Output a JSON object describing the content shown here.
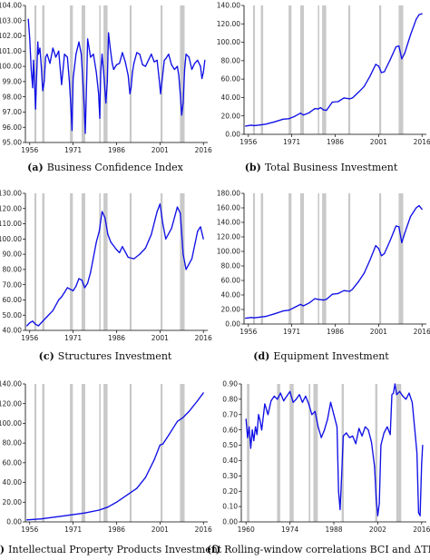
{
  "colors": {
    "series": "#1010e6",
    "recession_shade": "#c9c9c9",
    "axis": "#000000"
  },
  "chart_data": [
    {
      "type": "line",
      "panel": "a",
      "caption_letter": "(a)",
      "caption_text": "Business Confidence Index",
      "xlim": [
        1954.5,
        2017.5
      ],
      "ylim": [
        95.0,
        104.0
      ],
      "x_ticks": [
        "1956",
        "1971",
        "1986",
        "2001",
        "2016"
      ],
      "y_ticks": [
        "95.00",
        "96.00",
        "97.00",
        "98.00",
        "99.00",
        "100.00",
        "101.00",
        "102.00",
        "103.00",
        "104.00"
      ],
      "y_tick_values": [
        95,
        96,
        97,
        98,
        99,
        100,
        101,
        102,
        103,
        104
      ],
      "x_tick_values": [
        1956,
        1971,
        1986,
        2001,
        2016
      ],
      "recession_bands": [
        [
          1957.6,
          1958.3
        ],
        [
          1960.3,
          1961.1
        ],
        [
          1969.9,
          1970.9
        ],
        [
          1973.9,
          1975.2
        ],
        [
          1980.0,
          1980.5
        ],
        [
          1981.5,
          1982.9
        ],
        [
          1990.5,
          1991.2
        ],
        [
          2001.2,
          2001.9
        ],
        [
          2007.9,
          2009.5
        ]
      ],
      "series": [
        {
          "x": [
            1955.5,
            1956,
            1956.5,
            1957,
            1957.3,
            1957.7,
            1958,
            1958.4,
            1958.8,
            1959,
            1959.5,
            1960,
            1960.5,
            1961,
            1961.5,
            1962,
            1963,
            1964,
            1965,
            1966,
            1967,
            1968,
            1969,
            1969.7,
            1970.2,
            1970.6,
            1971,
            1972,
            1973,
            1973.8,
            1974.3,
            1974.8,
            1975.2,
            1975.7,
            1976,
            1977,
            1978,
            1979,
            1979.8,
            1980.2,
            1980.5,
            1981,
            1981.7,
            1982.3,
            1982.8,
            1983.2,
            1983.8,
            1984.5,
            1985,
            1986,
            1987,
            1988,
            1989,
            1990,
            1990.6,
            1991,
            1991.5,
            1992,
            1993,
            1994,
            1995,
            1996,
            1997,
            1998,
            1999,
            2000,
            2000.7,
            2001.2,
            2001.8,
            2002.5,
            2003,
            2004,
            2005,
            2006,
            2007,
            2007.5,
            2008,
            2008.5,
            2009,
            2009.5,
            2010,
            2011,
            2012,
            2013,
            2014,
            2015,
            2015.5,
            2016,
            2016.5
          ],
          "values": [
            103.1,
            101.8,
            99.8,
            98.6,
            100.4,
            98.8,
            97.2,
            99.4,
            101.6,
            100.8,
            101.2,
            100.0,
            98.4,
            99.0,
            100.6,
            100.8,
            100.2,
            101.2,
            100.6,
            101.0,
            98.8,
            100.8,
            100.6,
            99.0,
            97.4,
            95.8,
            99.2,
            100.8,
            101.6,
            100.8,
            99.2,
            97.4,
            95.6,
            99.2,
            101.8,
            100.6,
            100.8,
            99.6,
            98.2,
            96.6,
            99.6,
            100.8,
            99.2,
            97.6,
            99.0,
            102.2,
            101.2,
            100.2,
            99.8,
            100.1,
            100.2,
            100.9,
            100.3,
            99.4,
            98.2,
            98.6,
            99.6,
            100.2,
            100.9,
            100.8,
            100.1,
            100.0,
            100.4,
            100.8,
            100.3,
            100.4,
            99.2,
            98.2,
            99.2,
            100.4,
            100.5,
            100.8,
            100.1,
            99.8,
            100.0,
            99.4,
            98.2,
            96.8,
            97.6,
            99.8,
            100.8,
            100.6,
            99.8,
            100.2,
            100.4,
            100.0,
            99.2,
            99.6,
            100.4
          ]
        }
      ]
    },
    {
      "type": "line",
      "panel": "b",
      "caption_letter": "(b)",
      "caption_text": "Total Business Investment",
      "xlim": [
        1954.5,
        2017.5
      ],
      "ylim": [
        0,
        140
      ],
      "x_ticks": [
        "1956",
        "1971",
        "1986",
        "2001",
        "2016"
      ],
      "y_ticks": [
        "0.00",
        "20.00",
        "40.00",
        "60.00",
        "80.00",
        "100.00",
        "120.00",
        "140.00"
      ],
      "y_tick_values": [
        0,
        20,
        40,
        60,
        80,
        100,
        120,
        140
      ],
      "x_tick_values": [
        1956,
        1971,
        1986,
        2001,
        2016
      ],
      "recession_bands": [
        [
          1957.6,
          1958.3
        ],
        [
          1960.3,
          1961.1
        ],
        [
          1969.9,
          1970.9
        ],
        [
          1973.9,
          1975.2
        ],
        [
          1980.0,
          1980.5
        ],
        [
          1981.5,
          1982.9
        ],
        [
          1990.5,
          1991.2
        ],
        [
          2001.2,
          2001.9
        ],
        [
          2007.9,
          2009.5
        ]
      ],
      "series": [
        {
          "x": [
            1955,
            1957,
            1958,
            1960,
            1962,
            1965,
            1968,
            1970,
            1972,
            1974,
            1975,
            1977,
            1979,
            1980,
            1981,
            1982,
            1983,
            1985,
            1987,
            1989,
            1991,
            1992,
            1994,
            1996,
            1998,
            2000,
            2001,
            2002,
            2003,
            2005,
            2007,
            2008,
            2009,
            2010,
            2012,
            2014,
            2015,
            2016
          ],
          "values": [
            9,
            10,
            9.5,
            10.2,
            11,
            13.5,
            16.5,
            17,
            19.5,
            23,
            21,
            23.5,
            28,
            27.5,
            29,
            26.5,
            26,
            35,
            35.5,
            39.5,
            38.5,
            39.5,
            45.5,
            52,
            63,
            76,
            74,
            67,
            68,
            81,
            95,
            96,
            82,
            88,
            108,
            125,
            130,
            131
          ]
        }
      ]
    },
    {
      "type": "line",
      "panel": "c",
      "caption_letter": "(c)",
      "caption_text": "Structures Investment",
      "xlim": [
        1954.5,
        2017.5
      ],
      "ylim": [
        40,
        130
      ],
      "x_ticks": [
        "1956",
        "1971",
        "1986",
        "2001",
        "2016"
      ],
      "y_ticks": [
        "40.00",
        "50.00",
        "60.00",
        "70.00",
        "80.00",
        "90.00",
        "100.00",
        "110.00",
        "120.00",
        "130.00"
      ],
      "y_tick_values": [
        40,
        50,
        60,
        70,
        80,
        90,
        100,
        110,
        120,
        130
      ],
      "x_tick_values": [
        1956,
        1971,
        1986,
        2001,
        2016
      ],
      "recession_bands": [
        [
          1957.6,
          1958.3
        ],
        [
          1960.3,
          1961.1
        ],
        [
          1969.9,
          1970.9
        ],
        [
          1973.9,
          1975.2
        ],
        [
          1980.0,
          1980.5
        ],
        [
          1981.5,
          1982.9
        ],
        [
          1990.5,
          1991.2
        ],
        [
          2001.2,
          2001.9
        ],
        [
          2007.9,
          2009.5
        ]
      ],
      "series": [
        {
          "x": [
            1955,
            1956,
            1957,
            1958,
            1959,
            1960,
            1962,
            1964,
            1966,
            1967,
            1968,
            1969,
            1970,
            1971,
            1972,
            1973,
            1974,
            1975,
            1976,
            1977,
            1978,
            1979,
            1980,
            1981,
            1982,
            1983,
            1984,
            1986,
            1987,
            1988,
            1990,
            1992,
            1994,
            1996,
            1998,
            2000,
            2001,
            2002,
            2003,
            2005,
            2007,
            2008,
            2009,
            2010,
            2012,
            2014,
            2015,
            2016
          ],
          "values": [
            43,
            45,
            46,
            44,
            43,
            45,
            49,
            53,
            60,
            62,
            65,
            68,
            67,
            66,
            69,
            74,
            73,
            68,
            71,
            78,
            88,
            98,
            105,
            118,
            114,
            103,
            98,
            93,
            91,
            95,
            88,
            87,
            90,
            94,
            103,
            118,
            123,
            110,
            100,
            107,
            121,
            117,
            90,
            80,
            87,
            105,
            108,
            100
          ]
        }
      ]
    },
    {
      "type": "line",
      "panel": "d",
      "caption_letter": "(d)",
      "caption_text": "Equipment Investment",
      "xlim": [
        1954.5,
        2017.5
      ],
      "ylim": [
        0,
        180
      ],
      "x_ticks": [
        "1956",
        "1971",
        "1986",
        "2001",
        "2016"
      ],
      "y_ticks": [
        "0.00",
        "20.00",
        "40.00",
        "60.00",
        "80.00",
        "100.00",
        "120.00",
        "140.00",
        "160.00",
        "180.00"
      ],
      "y_tick_values": [
        0,
        20,
        40,
        60,
        80,
        100,
        120,
        140,
        160,
        180
      ],
      "x_tick_values": [
        1956,
        1971,
        1986,
        2001,
        2016
      ],
      "recession_bands": [
        [
          1957.6,
          1958.3
        ],
        [
          1960.3,
          1961.1
        ],
        [
          1969.9,
          1970.9
        ],
        [
          1973.9,
          1975.2
        ],
        [
          1980.0,
          1980.5
        ],
        [
          1981.5,
          1982.9
        ],
        [
          1990.5,
          1991.2
        ],
        [
          2001.2,
          2001.9
        ],
        [
          2007.9,
          2009.5
        ]
      ],
      "series": [
        {
          "x": [
            1955,
            1957,
            1958,
            1960,
            1962,
            1965,
            1968,
            1970,
            1972,
            1974,
            1975,
            1977,
            1979,
            1980,
            1982,
            1983,
            1985,
            1987,
            1989,
            1991,
            1992,
            1994,
            1996,
            1998,
            2000,
            2001,
            2002,
            2003,
            2005,
            2007,
            2008,
            2009,
            2010,
            2012,
            2014,
            2015,
            2016
          ],
          "values": [
            8,
            9,
            8.5,
            9.5,
            10.5,
            14,
            18,
            19,
            23,
            27,
            25,
            29,
            35,
            34,
            33,
            34,
            41,
            42,
            46,
            45,
            48,
            58,
            70,
            88,
            108,
            104,
            94,
            97,
            115,
            135,
            134,
            112,
            125,
            148,
            160,
            163,
            158
          ]
        }
      ]
    },
    {
      "type": "line",
      "panel": "e",
      "caption_letter": "(e)",
      "caption_text": "Intellectual Property Products Investment",
      "xlim": [
        1954.5,
        2017.5
      ],
      "ylim": [
        0,
        140
      ],
      "x_ticks": [
        "1956",
        "1971",
        "1986",
        "2001",
        "2016"
      ],
      "y_ticks": [
        "0.00",
        "20.00",
        "40.00",
        "60.00",
        "80.00",
        "100.00",
        "120.00",
        "140.00"
      ],
      "y_tick_values": [
        0,
        20,
        40,
        60,
        80,
        100,
        120,
        140
      ],
      "x_tick_values": [
        1956,
        1971,
        1986,
        2001,
        2016
      ],
      "recession_bands": [
        [
          1957.6,
          1958.3
        ],
        [
          1960.3,
          1961.1
        ],
        [
          1969.9,
          1970.9
        ],
        [
          1973.9,
          1975.2
        ],
        [
          1980.0,
          1980.5
        ],
        [
          1981.5,
          1982.9
        ],
        [
          1990.5,
          1991.2
        ],
        [
          2001.2,
          2001.9
        ],
        [
          2007.9,
          2009.5
        ]
      ],
      "series": [
        {
          "x": [
            1955,
            1960,
            1965,
            1970,
            1975,
            1980,
            1983,
            1986,
            1990,
            1993,
            1996,
            1999,
            2001,
            2002,
            2004,
            2007,
            2009,
            2011,
            2014,
            2016
          ],
          "values": [
            2,
            3,
            5,
            7,
            9,
            12,
            15,
            20,
            28,
            34,
            45,
            63,
            78,
            79,
            88,
            102,
            106,
            112,
            123,
            131
          ]
        }
      ]
    },
    {
      "type": "line",
      "panel": "f",
      "caption_letter": "(f)",
      "caption_text": "Rolling-window correlations BCI and ΔTBI",
      "xlim": [
        1958.5,
        2017.5
      ],
      "ylim": [
        0,
        0.9
      ],
      "x_ticks": [
        "1960",
        "1974",
        "1988",
        "2002",
        "2016"
      ],
      "y_ticks": [
        "0.00",
        "0.10",
        "0.20",
        "0.30",
        "0.40",
        "0.50",
        "0.60",
        "0.70",
        "0.80",
        "0.90"
      ],
      "y_tick_values": [
        0,
        0.1,
        0.2,
        0.3,
        0.4,
        0.5,
        0.6,
        0.7,
        0.8,
        0.9
      ],
      "x_tick_values": [
        1960,
        1974,
        1988,
        2002,
        2016
      ],
      "recession_bands": [
        [
          1960.3,
          1961.1
        ],
        [
          1969.9,
          1970.9
        ],
        [
          1973.9,
          1975.2
        ],
        [
          1980.0,
          1980.5
        ],
        [
          1981.5,
          1982.9
        ],
        [
          1990.5,
          1991.2
        ],
        [
          2001.2,
          2001.9
        ],
        [
          2007.9,
          2009.5
        ]
      ],
      "series": [
        {
          "x": [
            1960,
            1960.5,
            1961,
            1961.5,
            1962,
            1962.5,
            1963,
            1963.5,
            1964,
            1964.5,
            1965,
            1966,
            1967,
            1968,
            1969,
            1970,
            1971,
            1972,
            1973,
            1974,
            1975,
            1976,
            1977,
            1978,
            1979,
            1980,
            1981,
            1982,
            1983,
            1984,
            1985,
            1986,
            1987,
            1988,
            1989,
            1989.5,
            1990,
            1990.5,
            1991,
            1992,
            1993,
            1994,
            1995,
            1996,
            1997,
            1998,
            1999,
            2000,
            2001,
            2001.5,
            2002,
            2002.5,
            2003,
            2004,
            2005,
            2006,
            2006.5,
            2007,
            2007.5,
            2008,
            2009,
            2010,
            2011,
            2012,
            2013,
            2014,
            2014.5,
            2015,
            2015.5,
            2016,
            2016.3
          ],
          "values": [
            0.67,
            0.55,
            0.62,
            0.48,
            0.6,
            0.53,
            0.62,
            0.57,
            0.7,
            0.66,
            0.6,
            0.77,
            0.7,
            0.79,
            0.82,
            0.8,
            0.84,
            0.79,
            0.82,
            0.85,
            0.78,
            0.8,
            0.83,
            0.78,
            0.82,
            0.77,
            0.7,
            0.72,
            0.62,
            0.55,
            0.6,
            0.67,
            0.78,
            0.7,
            0.62,
            0.2,
            0.08,
            0.3,
            0.56,
            0.58,
            0.55,
            0.56,
            0.51,
            0.61,
            0.56,
            0.62,
            0.6,
            0.52,
            0.36,
            0.15,
            0.04,
            0.12,
            0.5,
            0.58,
            0.62,
            0.57,
            0.83,
            0.84,
            0.9,
            0.83,
            0.85,
            0.82,
            0.8,
            0.84,
            0.78,
            0.56,
            0.45,
            0.06,
            0.04,
            0.38,
            0.5
          ]
        }
      ]
    }
  ]
}
